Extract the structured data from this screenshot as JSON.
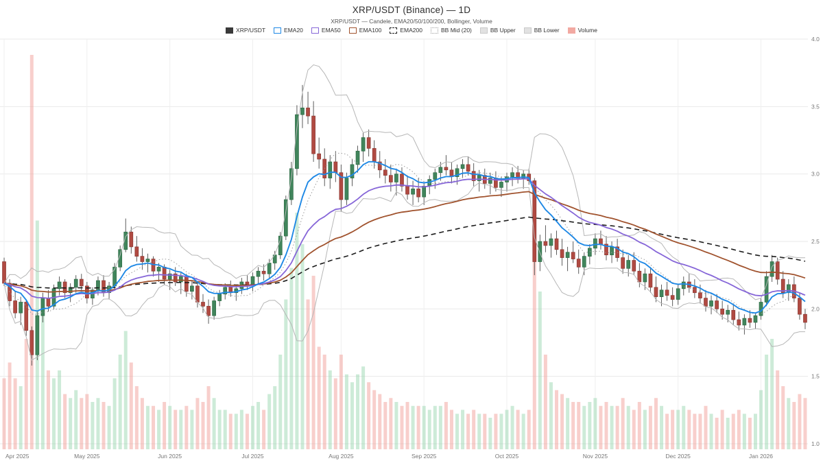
{
  "header": {
    "title": "XRP/USDT (Binance) — 1D",
    "subtitle": "XRP/USDT — Candele, EMA20/50/100/200, Bollinger, Volume"
  },
  "legend": [
    {
      "label": "XRP/USDT",
      "swatch": "solid",
      "color": "#3a3a3a"
    },
    {
      "label": "EMA20",
      "swatch": "outline",
      "color": "#1e88e5"
    },
    {
      "label": "EMA50",
      "swatch": "outline",
      "color": "#8666d8"
    },
    {
      "label": "EMA100",
      "swatch": "outline",
      "color": "#a0522d"
    },
    {
      "label": "EMA200",
      "swatch": "outline-dashed",
      "color": "#1a1a1a"
    },
    {
      "label": "BB Mid (20)",
      "swatch": "outline-dotted",
      "color": "#9a9a9a"
    },
    {
      "label": "BB Upper",
      "swatch": "fill-light",
      "color": "#e2e2e2"
    },
    {
      "label": "BB Lower",
      "swatch": "fill-light",
      "color": "#e2e2e2"
    },
    {
      "label": "Volume",
      "swatch": "solid",
      "color": "#f2a9a2"
    }
  ],
  "style": {
    "up_fill": "#41855c",
    "up_edge": "#2e6b45",
    "down_fill": "#b04a42",
    "down_edge": "#8c3a34",
    "wick": "#4a4a4a",
    "vol_up": "rgba(144,211,169,0.45)",
    "vol_down": "rgba(242,160,153,0.5)",
    "grid_h": "#e9e9e9",
    "grid_v": "#efefef",
    "axis_text": "#777",
    "bb_band": "#b6b6b6",
    "bb_mid": "#9a9a9a"
  },
  "chart_data": {
    "type": "candlestick",
    "title": "XRP/USDT (Binance) — 1D",
    "pair": "XRP/USDT",
    "exchange": "Binance",
    "timeframe": "1D",
    "bar_interval_days": 2,
    "ylim": [
      1.0,
      4.0
    ],
    "y_ticks": [
      "4.0",
      "3.5",
      "3.0",
      "2.5",
      "2.0",
      "1.5",
      "1.0"
    ],
    "x_ticks": [
      {
        "label": "Apr 2025",
        "bar": 0
      },
      {
        "label": "May 2025",
        "bar": 15
      },
      {
        "label": "Jun 2025",
        "bar": 30
      },
      {
        "label": "Jul 2025",
        "bar": 45
      },
      {
        "label": "Aug 2025",
        "bar": 61
      },
      {
        "label": "Sep 2025",
        "bar": 76
      },
      {
        "label": "Oct 2025",
        "bar": 91
      },
      {
        "label": "Nov 2025",
        "bar": 107
      },
      {
        "label": "Dec 2025",
        "bar": 122
      },
      {
        "label": "Jan 2026",
        "bar": 137
      }
    ],
    "indicators": {
      "ema": [
        {
          "name": "EMA200",
          "bars": 100,
          "color": "#1a1a1a",
          "width": 1.6,
          "dash": "7 5"
        },
        {
          "name": "EMA100",
          "bars": 50,
          "color": "#a0522d",
          "width": 1.8,
          "dash": ""
        },
        {
          "name": "EMA50",
          "bars": 25,
          "color": "#8666d8",
          "width": 1.8,
          "dash": ""
        },
        {
          "name": "EMA20",
          "bars": 10,
          "color": "#1e88e5",
          "width": 1.9,
          "dash": ""
        }
      ],
      "bollinger": {
        "name": "Bollinger (20,2)",
        "bars": 10,
        "stdev": 2
      }
    },
    "candles_ohlcv_comment": "each entry = [open, high, low, close, volume % of max], one bar = 2 days, Apr 2025 - mid Jan 2026",
    "candles_ohlcv": [
      [
        2.35,
        2.38,
        2.17,
        2.19,
        18
      ],
      [
        2.19,
        2.22,
        2.02,
        2.06,
        22
      ],
      [
        2.06,
        2.13,
        1.93,
        1.97,
        18
      ],
      [
        1.97,
        2.09,
        1.88,
        2.05,
        16
      ],
      [
        2.05,
        2.06,
        1.8,
        1.84,
        28
      ],
      [
        1.84,
        1.87,
        1.58,
        1.66,
        100
      ],
      [
        1.66,
        1.98,
        1.62,
        1.95,
        58
      ],
      [
        1.95,
        2.12,
        1.9,
        2.08,
        34
      ],
      [
        2.08,
        2.14,
        1.98,
        2.02,
        20
      ],
      [
        2.02,
        2.18,
        2.0,
        2.15,
        18
      ],
      [
        2.15,
        2.24,
        2.1,
        2.2,
        20
      ],
      [
        2.2,
        2.22,
        2.08,
        2.12,
        14
      ],
      [
        2.12,
        2.19,
        2.05,
        2.16,
        13
      ],
      [
        2.16,
        2.25,
        2.12,
        2.22,
        15
      ],
      [
        2.22,
        2.26,
        2.13,
        2.17,
        13
      ],
      [
        2.17,
        2.2,
        2.04,
        2.08,
        14
      ],
      [
        2.08,
        2.16,
        2.03,
        2.14,
        12
      ],
      [
        2.14,
        2.24,
        2.1,
        2.21,
        13
      ],
      [
        2.21,
        2.25,
        2.09,
        2.12,
        12
      ],
      [
        2.12,
        2.2,
        2.07,
        2.17,
        11
      ],
      [
        2.17,
        2.34,
        2.14,
        2.31,
        18
      ],
      [
        2.31,
        2.47,
        2.28,
        2.44,
        24
      ],
      [
        2.44,
        2.67,
        2.42,
        2.57,
        30
      ],
      [
        2.57,
        2.61,
        2.41,
        2.46,
        22
      ],
      [
        2.46,
        2.54,
        2.35,
        2.39,
        16
      ],
      [
        2.39,
        2.45,
        2.29,
        2.35,
        13
      ],
      [
        2.35,
        2.41,
        2.27,
        2.37,
        11
      ],
      [
        2.37,
        2.39,
        2.24,
        2.28,
        11
      ],
      [
        2.28,
        2.34,
        2.2,
        2.31,
        10
      ],
      [
        2.31,
        2.33,
        2.18,
        2.22,
        12
      ],
      [
        2.22,
        2.29,
        2.14,
        2.26,
        11
      ],
      [
        2.26,
        2.31,
        2.17,
        2.2,
        10
      ],
      [
        2.2,
        2.27,
        2.11,
        2.24,
        10
      ],
      [
        2.24,
        2.26,
        2.09,
        2.13,
        11
      ],
      [
        2.13,
        2.21,
        2.07,
        2.17,
        10
      ],
      [
        2.17,
        2.19,
        2.01,
        2.05,
        13
      ],
      [
        2.05,
        2.11,
        1.97,
        2.02,
        12
      ],
      [
        2.02,
        2.07,
        1.89,
        1.95,
        16
      ],
      [
        1.95,
        2.09,
        1.92,
        2.06,
        13
      ],
      [
        2.06,
        2.14,
        2.02,
        2.11,
        10
      ],
      [
        2.11,
        2.19,
        2.07,
        2.16,
        10
      ],
      [
        2.16,
        2.21,
        2.09,
        2.12,
        9
      ],
      [
        2.12,
        2.18,
        2.06,
        2.15,
        9
      ],
      [
        2.15,
        2.23,
        2.11,
        2.2,
        10
      ],
      [
        2.2,
        2.25,
        2.14,
        2.18,
        9
      ],
      [
        2.18,
        2.27,
        2.13,
        2.24,
        11
      ],
      [
        2.24,
        2.31,
        2.19,
        2.28,
        12
      ],
      [
        2.28,
        2.33,
        2.21,
        2.26,
        10
      ],
      [
        2.26,
        2.37,
        2.23,
        2.34,
        14
      ],
      [
        2.34,
        2.43,
        2.29,
        2.4,
        16
      ],
      [
        2.4,
        2.57,
        2.37,
        2.54,
        24
      ],
      [
        2.54,
        2.84,
        2.51,
        2.81,
        38
      ],
      [
        2.81,
        3.09,
        2.77,
        3.04,
        46
      ],
      [
        3.04,
        3.51,
        2.99,
        3.44,
        60
      ],
      [
        3.44,
        3.66,
        3.34,
        3.49,
        52
      ],
      [
        3.49,
        3.61,
        3.37,
        3.43,
        38
      ],
      [
        3.43,
        3.54,
        3.09,
        3.15,
        44
      ],
      [
        3.15,
        3.27,
        3.04,
        3.11,
        26
      ],
      [
        3.11,
        3.19,
        2.91,
        2.97,
        24
      ],
      [
        2.97,
        3.14,
        2.89,
        3.09,
        20
      ],
      [
        3.09,
        3.17,
        2.94,
        3.01,
        18
      ],
      [
        3.01,
        3.07,
        2.72,
        2.81,
        24
      ],
      [
        2.81,
        3.01,
        2.77,
        2.97,
        19
      ],
      [
        2.97,
        3.11,
        2.91,
        3.07,
        17
      ],
      [
        3.07,
        3.21,
        3.01,
        3.17,
        19
      ],
      [
        3.17,
        3.31,
        3.09,
        3.27,
        21
      ],
      [
        3.27,
        3.33,
        3.13,
        3.19,
        17
      ],
      [
        3.19,
        3.25,
        3.04,
        3.09,
        15
      ],
      [
        3.09,
        3.17,
        2.97,
        3.03,
        14
      ],
      [
        3.03,
        3.11,
        2.93,
        2.99,
        12
      ],
      [
        2.99,
        3.07,
        2.87,
        2.94,
        13
      ],
      [
        2.94,
        3.04,
        2.84,
        3.0,
        12
      ],
      [
        3.0,
        3.05,
        2.87,
        2.91,
        11
      ],
      [
        2.91,
        2.99,
        2.81,
        2.85,
        12
      ],
      [
        2.85,
        2.95,
        2.77,
        2.89,
        11
      ],
      [
        2.89,
        2.97,
        2.79,
        2.83,
        11
      ],
      [
        2.83,
        2.94,
        2.77,
        2.91,
        11
      ],
      [
        2.91,
        2.99,
        2.85,
        2.96,
        10
      ],
      [
        2.96,
        3.04,
        2.89,
        3.01,
        11
      ],
      [
        3.01,
        3.09,
        2.95,
        3.05,
        11
      ],
      [
        3.05,
        3.14,
        2.99,
        3.03,
        12
      ],
      [
        3.03,
        3.09,
        2.93,
        2.98,
        10
      ],
      [
        2.98,
        3.07,
        2.92,
        3.04,
        9
      ],
      [
        3.04,
        3.11,
        2.97,
        3.07,
        10
      ],
      [
        3.07,
        3.13,
        2.99,
        3.02,
        9
      ],
      [
        3.02,
        3.08,
        2.91,
        2.95,
        10
      ],
      [
        2.95,
        3.03,
        2.87,
        2.99,
        9
      ],
      [
        2.99,
        3.04,
        2.89,
        2.93,
        9
      ],
      [
        2.93,
        3.01,
        2.85,
        2.97,
        8
      ],
      [
        2.97,
        3.02,
        2.87,
        2.9,
        9
      ],
      [
        2.9,
        2.98,
        2.83,
        2.94,
        9
      ],
      [
        2.94,
        3.01,
        2.87,
        2.98,
        10
      ],
      [
        2.98,
        3.05,
        2.91,
        3.01,
        11
      ],
      [
        3.01,
        3.06,
        2.93,
        2.97,
        10
      ],
      [
        2.97,
        3.03,
        2.89,
        3.0,
        9
      ],
      [
        3.0,
        3.04,
        2.92,
        2.95,
        10
      ],
      [
        2.95,
        2.97,
        2.25,
        2.35,
        68
      ],
      [
        2.35,
        2.55,
        2.28,
        2.5,
        40
      ],
      [
        2.5,
        2.62,
        2.42,
        2.47,
        24
      ],
      [
        2.47,
        2.56,
        2.38,
        2.52,
        17
      ],
      [
        2.52,
        2.58,
        2.4,
        2.44,
        15
      ],
      [
        2.44,
        2.52,
        2.32,
        2.38,
        14
      ],
      [
        2.38,
        2.46,
        2.28,
        2.42,
        13
      ],
      [
        2.42,
        2.5,
        2.34,
        2.37,
        12
      ],
      [
        2.37,
        2.44,
        2.26,
        2.31,
        12
      ],
      [
        2.31,
        2.42,
        2.25,
        2.39,
        11
      ],
      [
        2.39,
        2.48,
        2.33,
        2.45,
        12
      ],
      [
        2.45,
        2.56,
        2.4,
        2.52,
        13
      ],
      [
        2.52,
        2.58,
        2.44,
        2.48,
        11
      ],
      [
        2.48,
        2.54,
        2.36,
        2.4,
        12
      ],
      [
        2.4,
        2.5,
        2.34,
        2.46,
        11
      ],
      [
        2.46,
        2.52,
        2.35,
        2.38,
        11
      ],
      [
        2.38,
        2.44,
        2.26,
        2.3,
        13
      ],
      [
        2.3,
        2.4,
        2.24,
        2.36,
        11
      ],
      [
        2.36,
        2.42,
        2.25,
        2.28,
        10
      ],
      [
        2.28,
        2.34,
        2.16,
        2.2,
        12
      ],
      [
        2.2,
        2.3,
        2.14,
        2.26,
        10
      ],
      [
        2.26,
        2.31,
        2.12,
        2.16,
        11
      ],
      [
        2.16,
        2.24,
        2.05,
        2.09,
        13
      ],
      [
        2.09,
        2.18,
        2.02,
        2.14,
        11
      ],
      [
        2.14,
        2.2,
        2.06,
        2.1,
        9
      ],
      [
        2.1,
        2.16,
        2.02,
        2.07,
        10
      ],
      [
        2.07,
        2.18,
        2.03,
        2.15,
        10
      ],
      [
        2.15,
        2.24,
        2.1,
        2.2,
        11
      ],
      [
        2.2,
        2.26,
        2.12,
        2.16,
        10
      ],
      [
        2.16,
        2.22,
        2.08,
        2.12,
        9
      ],
      [
        2.12,
        2.18,
        2.04,
        2.08,
        9
      ],
      [
        2.08,
        2.14,
        1.98,
        2.02,
        11
      ],
      [
        2.02,
        2.1,
        1.96,
        2.06,
        9
      ],
      [
        2.06,
        2.11,
        1.97,
        2.0,
        8
      ],
      [
        2.0,
        2.06,
        1.92,
        1.96,
        10
      ],
      [
        1.96,
        2.03,
        1.9,
        1.99,
        8
      ],
      [
        1.99,
        2.04,
        1.88,
        1.92,
        9
      ],
      [
        1.92,
        1.98,
        1.84,
        1.88,
        10
      ],
      [
        1.88,
        1.96,
        1.81,
        1.93,
        9
      ],
      [
        1.93,
        1.99,
        1.86,
        1.9,
        8
      ],
      [
        1.9,
        1.97,
        1.85,
        1.95,
        9
      ],
      [
        1.95,
        2.08,
        1.92,
        2.05,
        15
      ],
      [
        2.05,
        2.28,
        2.02,
        2.24,
        24
      ],
      [
        2.24,
        2.4,
        2.2,
        2.35,
        28
      ],
      [
        2.35,
        2.38,
        2.18,
        2.22,
        20
      ],
      [
        2.22,
        2.28,
        2.08,
        2.12,
        16
      ],
      [
        2.12,
        2.22,
        2.06,
        2.18,
        13
      ],
      [
        2.18,
        2.24,
        2.05,
        2.08,
        12
      ],
      [
        2.08,
        2.12,
        1.92,
        1.96,
        14
      ],
      [
        1.96,
        2.0,
        1.85,
        1.9,
        13
      ]
    ]
  }
}
